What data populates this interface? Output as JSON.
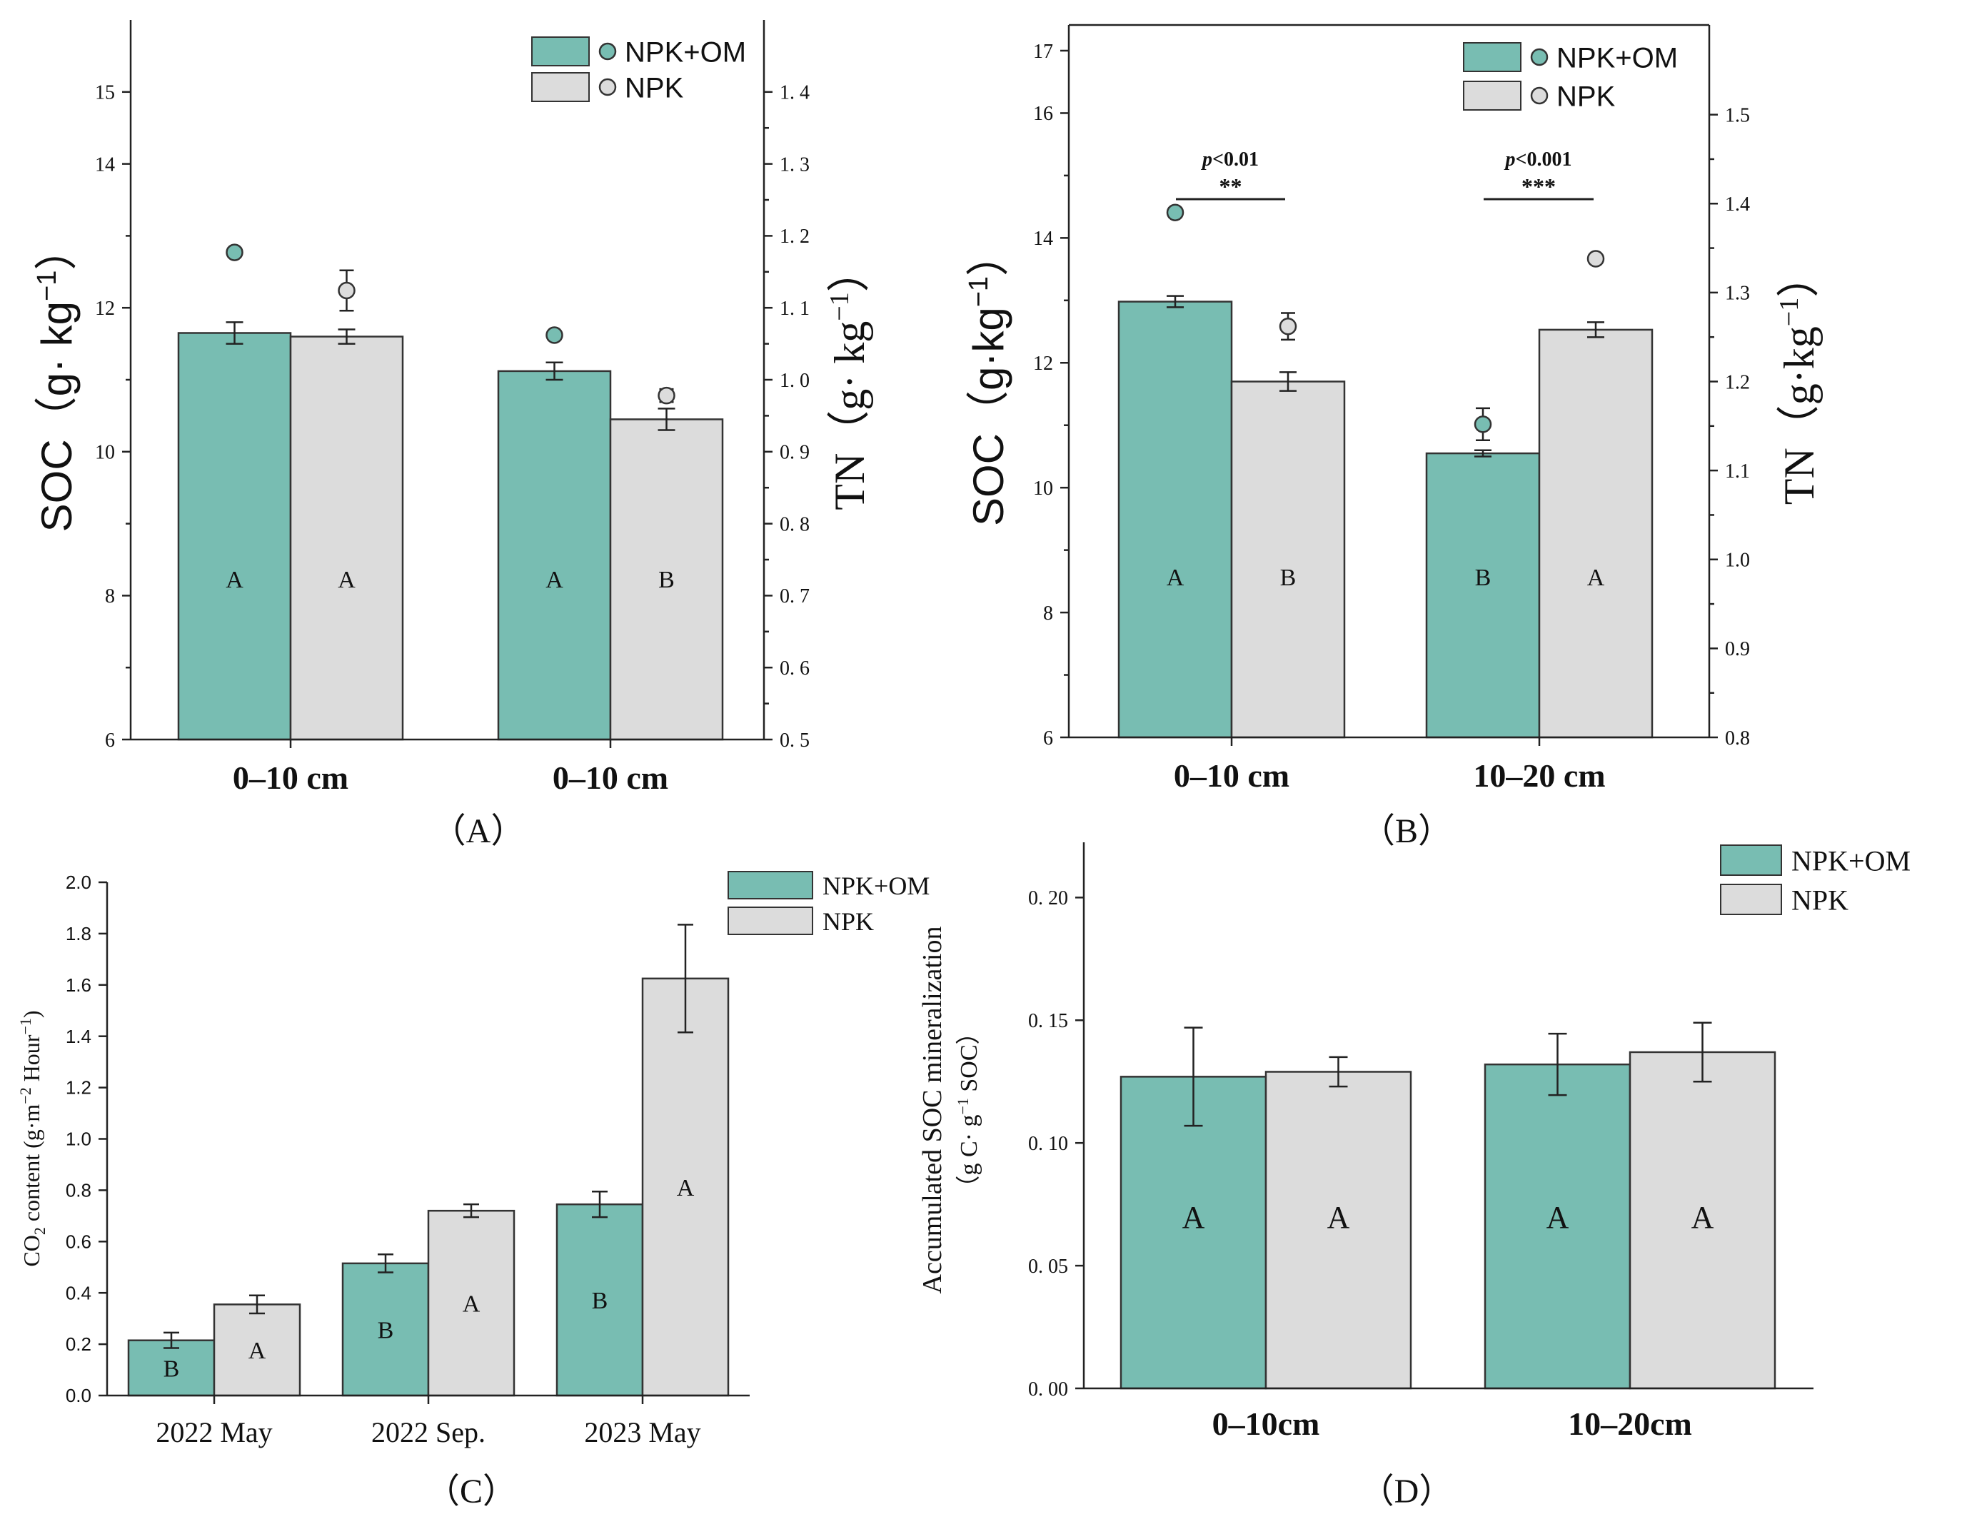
{
  "colors": {
    "npk_om": "#78bdb2",
    "npk": "#dcdcdc",
    "axis": "#222222",
    "stroke": "#333333"
  },
  "chart_data": [
    {
      "id": "A",
      "type": "bar",
      "panel_label": "（A）",
      "categories": [
        "0–10 cm",
        "0–10 cm"
      ],
      "ylabel": "SOC（g· kg",
      "ylabel_sup": "−1",
      "ylabel_close": "）",
      "y2label": "TN（g· kg",
      "y2label_sup": "−1",
      "y2label_close": "）",
      "ylim": [
        6,
        16
      ],
      "yticks": [
        6,
        8,
        10,
        12,
        14,
        15
      ],
      "ytick_labels": [
        "6",
        "8",
        "10",
        "12",
        "14",
        "15"
      ],
      "y2lim": [
        0.5,
        1.5
      ],
      "y2ticks": [
        0.5,
        0.6,
        0.7,
        0.8,
        0.9,
        1.0,
        1.1,
        1.2,
        1.3,
        1.4
      ],
      "y2tick_labels": [
        "0. 5",
        "0. 6",
        "0. 7",
        "0. 8",
        "0. 9",
        "1. 0",
        "1. 1",
        "1. 2",
        "1. 3",
        "1. 4"
      ],
      "series": [
        {
          "name": "NPK+OM",
          "values": [
            11.65,
            11.12
          ],
          "errors": [
            0.15,
            0.12
          ],
          "letters": [
            "A",
            "A"
          ],
          "tn": [
            1.177,
            1.062
          ],
          "tn_errors": [
            0.006,
            0.005
          ]
        },
        {
          "name": "NPK",
          "values": [
            11.6,
            10.45
          ],
          "errors": [
            0.1,
            0.15
          ],
          "letters": [
            "A",
            "B"
          ],
          "tn": [
            1.124,
            0.978
          ],
          "tn_errors": [
            0.028,
            0.009
          ]
        }
      ],
      "legend": [
        "NPK+OM",
        "NPK"
      ]
    },
    {
      "id": "B",
      "type": "bar",
      "panel_label": "（B）",
      "categories": [
        "0–10 cm",
        "10–20 cm"
      ],
      "ylabel": "SOC（g·kg",
      "ylabel_sup": "−1",
      "ylabel_close": "）",
      "y2label": "TN（g·kg",
      "y2label_sup": "−1",
      "y2label_close": "）",
      "ylim": [
        6,
        17.4
      ],
      "yticks": [
        6,
        8,
        10,
        12,
        14,
        16,
        17
      ],
      "ytick_labels": [
        "6",
        "8",
        "10",
        "12",
        "14",
        "16",
        "17"
      ],
      "y2lim": [
        0.8,
        1.6
      ],
      "y2ticks": [
        0.8,
        0.9,
        1.0,
        1.1,
        1.2,
        1.3,
        1.4,
        1.5
      ],
      "y2tick_labels": [
        "0.8",
        "0.9",
        "1.0",
        "1.1",
        "1.2",
        "1.3",
        "1.4",
        "1.5"
      ],
      "series": [
        {
          "name": "NPK+OM",
          "values": [
            12.98,
            10.55
          ],
          "errors": [
            0.09,
            0.05
          ],
          "letters": [
            "A",
            "B"
          ],
          "tn": [
            1.39,
            1.152
          ],
          "tn_errors": [
            0.005,
            0.018
          ]
        },
        {
          "name": "NPK",
          "values": [
            11.7,
            12.53
          ],
          "errors": [
            0.15,
            0.12
          ],
          "letters": [
            "B",
            "A"
          ],
          "tn": [
            1.262,
            1.338
          ],
          "tn_errors": [
            0.015,
            0.004
          ]
        }
      ],
      "significance": [
        {
          "p": "<0.01",
          "stars": "**"
        },
        {
          "p": "<0.001",
          "stars": "***"
        }
      ],
      "legend": [
        "NPK+OM",
        "NPK"
      ]
    },
    {
      "id": "C",
      "type": "bar",
      "panel_label": "（C）",
      "categories": [
        "2022 May",
        "2022 Sep.",
        "2023 May"
      ],
      "ylabel": "CO",
      "ylabel_sub": "2",
      "ylabel_rest": " content (g·m",
      "ylabel_sup1": "−2",
      "ylabel_rest2": " Hour",
      "ylabel_sup2": "−1",
      "ylabel_close": ")",
      "ylim": [
        0,
        2.0
      ],
      "yticks": [
        0,
        0.2,
        0.4,
        0.6,
        0.8,
        1.0,
        1.2,
        1.4,
        1.6,
        1.8,
        2.0
      ],
      "ytick_labels": [
        "0.0",
        "0.2",
        "0.4",
        "0.6",
        "0.8",
        "1.0",
        "1.2",
        "1.4",
        "1.6",
        "1.8",
        "2.0"
      ],
      "series": [
        {
          "name": "NPK+OM",
          "values": [
            0.215,
            0.515,
            0.745
          ],
          "errors": [
            0.03,
            0.035,
            0.05
          ],
          "letters": [
            "B",
            "B",
            "B"
          ]
        },
        {
          "name": "NPK",
          "values": [
            0.355,
            0.72,
            1.625
          ],
          "errors": [
            0.035,
            0.025,
            0.21
          ],
          "letters": [
            "A",
            "A",
            "A"
          ]
        }
      ],
      "legend": [
        "NPK+OM",
        "NPK"
      ]
    },
    {
      "id": "D",
      "type": "bar",
      "panel_label": "（D）",
      "categories": [
        "0–10cm",
        "10–20cm"
      ],
      "ylabel": "Accumulated SOC mineralization",
      "ylabel2": "（g C· g",
      "ylabel2_sup": "−1",
      "ylabel2_close": " SOC）",
      "ylim": [
        0,
        0.2225
      ],
      "yticks": [
        0,
        0.05,
        0.1,
        0.15,
        0.2
      ],
      "ytick_labels": [
        "0. 00",
        "0. 05",
        "0. 10",
        "0. 15",
        "0. 20"
      ],
      "series": [
        {
          "name": "NPK+OM",
          "values": [
            0.127,
            0.132
          ],
          "errors": [
            0.02,
            0.0125
          ],
          "letters": [
            "A",
            "A"
          ]
        },
        {
          "name": "NPK",
          "values": [
            0.129,
            0.137
          ],
          "errors": [
            0.006,
            0.012
          ],
          "letters": [
            "A",
            "A"
          ]
        }
      ],
      "legend": [
        "NPK+OM",
        "NPK"
      ]
    }
  ]
}
